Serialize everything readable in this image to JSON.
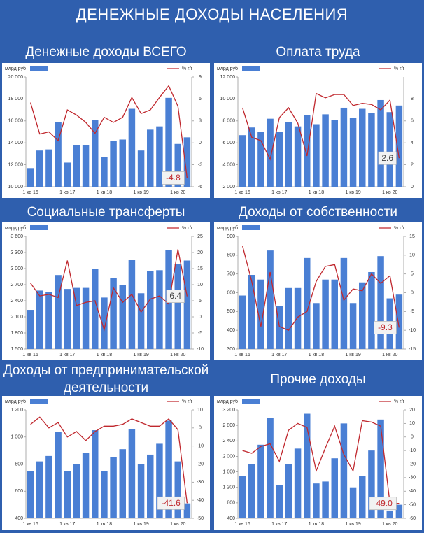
{
  "title": "ДЕНЕЖНЫЕ ДОХОДЫ НАСЕЛЕНИЯ",
  "chart_data": [
    {
      "type": "bar-line",
      "title": "Денежные доходы ВСЕГО",
      "categories": [
        "1 кв 16",
        null,
        null,
        null,
        "1 кв 17",
        null,
        null,
        null,
        "1 кв 18",
        null,
        null,
        null,
        "1 кв 19",
        null,
        null,
        null,
        "1 кв 20",
        null
      ],
      "series": [
        {
          "name": "млрд руб",
          "color": "#4a7fd4",
          "values": [
            11700,
            13300,
            13400,
            15900,
            12200,
            13800,
            13800,
            16100,
            12700,
            14200,
            14300,
            17100,
            13300,
            15200,
            15500,
            18100,
            13900,
            14500
          ]
        },
        {
          "name": "% г/г",
          "color": "#c0282e",
          "axis": "y2",
          "label_color": "#c0282e",
          "values": [
            5.5,
            1.2,
            1.5,
            0.3,
            4.5,
            3.8,
            2.8,
            1.3,
            3.5,
            2.8,
            3.5,
            6.2,
            4.0,
            4.5,
            6.2,
            7.8,
            5.0,
            -4.8
          ],
          "value_labels": [
            null,
            null,
            null,
            null,
            null,
            null,
            null,
            null,
            null,
            null,
            null,
            null,
            null,
            null,
            null,
            null,
            null,
            "-4.8"
          ]
        }
      ],
      "ylim": [
        10000,
        20000
      ],
      "yticks": [
        {
          "value": 10000,
          "label": "10 000"
        },
        {
          "value": 12000,
          "label": "12 000"
        },
        {
          "value": 14000,
          "label": "14 000"
        },
        {
          "value": 16000,
          "label": "16 000"
        },
        {
          "value": 18000,
          "label": "18 000"
        },
        {
          "value": 20000,
          "label": "20 000"
        }
      ],
      "y2lim": [
        -6,
        9
      ],
      "y2ticks": [
        -6,
        -3,
        0,
        3,
        6,
        9
      ]
    },
    {
      "type": "bar-line",
      "title": "Оплата труда",
      "categories": [
        "1 кв 16",
        null,
        null,
        null,
        "1 кв 17",
        null,
        null,
        null,
        "1 кв 18",
        null,
        null,
        null,
        "1 кв 19",
        null,
        null,
        null,
        "1 кв 20",
        null
      ],
      "series": [
        {
          "name": "млрд руб",
          "color": "#4a7fd4",
          "values": [
            6700,
            7400,
            7000,
            8200,
            7000,
            7900,
            7500,
            8500,
            7700,
            8600,
            8100,
            9200,
            8300,
            9100,
            8700,
            9900,
            8800,
            9400
          ]
        },
        {
          "name": "% г/г",
          "color": "#c0282e",
          "axis": "y2",
          "label_color": "#404040",
          "values": [
            7.2,
            4.5,
            4.2,
            2.5,
            6.3,
            7.2,
            5.8,
            2.8,
            8.5,
            8.1,
            8.4,
            8.4,
            7.4,
            7.6,
            7.5,
            7.0,
            7.9,
            2.6
          ],
          "value_labels": [
            null,
            null,
            null,
            null,
            null,
            null,
            null,
            null,
            null,
            null,
            null,
            null,
            null,
            null,
            null,
            null,
            null,
            "2.6"
          ]
        }
      ],
      "ylim": [
        2000,
        12000
      ],
      "yticks": [
        {
          "value": 2000,
          "label": "2 000"
        },
        {
          "value": 4000,
          "label": "4 000"
        },
        {
          "value": 6000,
          "label": "6 000"
        },
        {
          "value": 8000,
          "label": "8 000"
        },
        {
          "value": 10000,
          "label": "10 000"
        },
        {
          "value": 12000,
          "label": "12 000"
        }
      ],
      "y2lim": [
        0,
        10
      ],
      "y2ticks": [
        0,
        2,
        4,
        6,
        8
      ]
    },
    {
      "type": "bar-line",
      "title": "Социальные трансферты",
      "categories": [
        "1 кв 16",
        null,
        null,
        null,
        "1 кв 17",
        null,
        null,
        null,
        "1 кв 18",
        null,
        null,
        null,
        "1 кв 19",
        null,
        null,
        null,
        "1 кв 20",
        null
      ],
      "series": [
        {
          "name": "млрд руб",
          "color": "#4a7fd4",
          "values": [
            2230,
            2590,
            2560,
            2880,
            2620,
            2640,
            2640,
            2990,
            2460,
            2830,
            2700,
            3160,
            2540,
            2960,
            2970,
            3340,
            3080,
            3150
          ]
        },
        {
          "name": "% г/г",
          "color": "#c0282e",
          "axis": "y2",
          "label_color": "#404040",
          "values": [
            10.5,
            6.5,
            7.0,
            6.0,
            17.5,
            3.5,
            4.5,
            5.0,
            -4.0,
            9.0,
            4.5,
            7.0,
            1.5,
            5.5,
            6.5,
            4.0,
            21.0,
            6.4
          ],
          "value_labels": [
            null,
            null,
            null,
            null,
            null,
            null,
            null,
            null,
            null,
            null,
            null,
            null,
            null,
            null,
            null,
            null,
            null,
            "6.4"
          ]
        }
      ],
      "ylim": [
        1500,
        3600
      ],
      "yticks": [
        {
          "value": 1500,
          "label": "1 500"
        },
        {
          "value": 1800,
          "label": "1 800"
        },
        {
          "value": 2100,
          "label": "2 100"
        },
        {
          "value": 2400,
          "label": "2 400"
        },
        {
          "value": 2700,
          "label": "2 700"
        },
        {
          "value": 3000,
          "label": "3 000"
        },
        {
          "value": 3300,
          "label": "3 300"
        },
        {
          "value": 3600,
          "label": "3 600"
        }
      ],
      "y2lim": [
        -10,
        25
      ],
      "y2ticks": [
        -10,
        -5,
        0,
        5,
        10,
        15,
        20,
        25
      ]
    },
    {
      "type": "bar-line",
      "title": "Доходы от собственности",
      "categories": [
        "1 кв 16",
        null,
        null,
        null,
        "1 кв 17",
        null,
        null,
        null,
        "1 кв 18",
        null,
        null,
        null,
        "1 кв 19",
        null,
        null,
        null,
        "1 кв 20",
        null
      ],
      "series": [
        {
          "name": "млрд руб",
          "color": "#4a7fd4",
          "values": [
            585,
            695,
            670,
            825,
            530,
            625,
            625,
            785,
            545,
            670,
            670,
            785,
            545,
            655,
            710,
            795,
            570,
            590
          ]
        },
        {
          "name": "% г/г",
          "color": "#c0282e",
          "axis": "y2",
          "label_color": "#c0282e",
          "values": [
            12.5,
            3.0,
            -9.0,
            5.5,
            -9.0,
            -10.0,
            -6.5,
            -5.0,
            3.0,
            7.0,
            7.5,
            -2.0,
            1.0,
            0.5,
            5.0,
            2.5,
            4.5,
            -9.3
          ],
          "value_labels": [
            null,
            null,
            null,
            null,
            null,
            null,
            null,
            null,
            null,
            null,
            null,
            null,
            null,
            null,
            null,
            null,
            null,
            "-9.3"
          ]
        }
      ],
      "ylim": [
        300,
        900
      ],
      "yticks": [
        300,
        400,
        500,
        600,
        700,
        800,
        900
      ],
      "y2lim": [
        -15,
        15
      ],
      "y2ticks": [
        -15,
        -10,
        -5,
        0,
        5,
        10,
        15
      ]
    },
    {
      "type": "bar-line",
      "title": "Доходы от предпринимательской деятельности",
      "categories": [
        "1 кв 16",
        null,
        null,
        null,
        "1 кв 17",
        null,
        null,
        null,
        "1 кв 18",
        null,
        null,
        null,
        "1 кв 19",
        null,
        null,
        null,
        "1 кв 20",
        null
      ],
      "series": [
        {
          "name": "млрд руб",
          "color": "#4a7fd4",
          "values": [
            750,
            820,
            860,
            1040,
            750,
            800,
            880,
            1050,
            750,
            850,
            910,
            1060,
            800,
            870,
            950,
            1120,
            820,
            510
          ]
        },
        {
          "name": "% г/г",
          "color": "#c0282e",
          "axis": "y2",
          "label_color": "#c0282e",
          "values": [
            2,
            6,
            0,
            3,
            -5,
            -2,
            -7,
            -2,
            1,
            1,
            2,
            5,
            3,
            1,
            1,
            5,
            -1,
            -41.6
          ],
          "value_labels": [
            null,
            null,
            null,
            null,
            null,
            null,
            null,
            null,
            null,
            null,
            null,
            null,
            null,
            null,
            null,
            null,
            null,
            "-41.6"
          ]
        }
      ],
      "ylim": [
        400,
        1200
      ],
      "yticks": [
        400,
        600,
        800,
        {
          "value": 1000,
          "label": "1 000"
        },
        {
          "value": 1200,
          "label": "1 200"
        }
      ],
      "y2lim": [
        -50,
        10
      ],
      "y2ticks": [
        -50,
        -40,
        -30,
        -20,
        -10,
        0,
        10
      ]
    },
    {
      "type": "bar-line",
      "title": "Прочие доходы",
      "categories": [
        "1 кв 16",
        null,
        null,
        null,
        "1 кв 17",
        null,
        null,
        null,
        "1 кв 18",
        null,
        null,
        null,
        "1 кв 19",
        null,
        null,
        null,
        "1 кв 20",
        null
      ],
      "series": [
        {
          "name": "млрд руб",
          "color": "#4a7fd4",
          "values": [
            1500,
            1800,
            2300,
            3000,
            1250,
            1800,
            2200,
            3100,
            1300,
            1350,
            1950,
            2850,
            1200,
            1500,
            2150,
            2950,
            600,
            750
          ]
        },
        {
          "name": "% г/г",
          "color": "#c0282e",
          "axis": "y2",
          "label_color": "#c0282e",
          "values": [
            -10,
            -12,
            -7,
            -5,
            -18,
            5,
            10,
            7,
            -25,
            -8,
            8,
            -13,
            -25,
            12,
            11,
            8,
            -49,
            -49
          ],
          "value_labels": [
            null,
            null,
            null,
            null,
            null,
            null,
            null,
            null,
            null,
            null,
            null,
            null,
            null,
            null,
            null,
            null,
            null,
            "-49.0"
          ]
        }
      ],
      "ylim": [
        400,
        3200
      ],
      "yticks": [
        400,
        800,
        {
          "value": 1200,
          "label": "1 200"
        },
        {
          "value": 1600,
          "label": "1 600"
        },
        {
          "value": 2000,
          "label": "2 000"
        },
        {
          "value": 2400,
          "label": "2 400"
        },
        {
          "value": 2800,
          "label": "2 800"
        },
        {
          "value": 3200,
          "label": "3 200"
        }
      ],
      "y2lim": [
        -60,
        20
      ],
      "y2ticks": [
        -60,
        -50,
        -40,
        -30,
        -20,
        -10,
        0,
        10,
        20
      ]
    }
  ]
}
